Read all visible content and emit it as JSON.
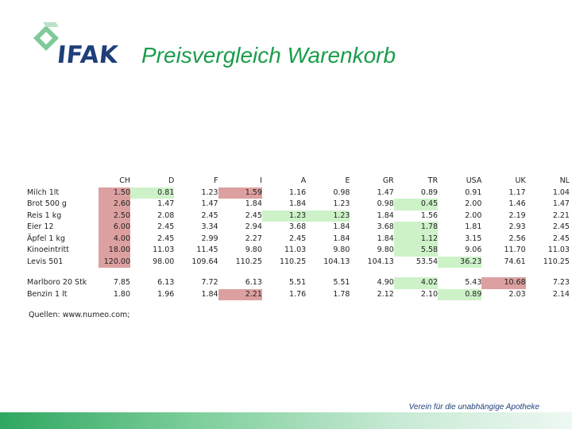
{
  "header": {
    "logo_text": "IFAK",
    "title": "Preisvergleich Warenkorb"
  },
  "colors": {
    "title": "#1a9c4a",
    "logo_navy": "#1f3f7a",
    "highlight_high": "#dda0a0",
    "highlight_low": "#cdf2c8"
  },
  "table": {
    "columns": [
      "CH",
      "D",
      "F",
      "I",
      "A",
      "E",
      "GR",
      "TR",
      "USA",
      "UK",
      "NL"
    ],
    "rows": [
      {
        "label": "Milch 1lt",
        "values": [
          "1.50",
          "0.81",
          "1.23",
          "1.59",
          "1.16",
          "0.98",
          "1.47",
          "0.89",
          "0.91",
          "1.17",
          "1.04"
        ]
      },
      {
        "label": "Brot 500 g",
        "values": [
          "2.60",
          "1.47",
          "1.47",
          "1.84",
          "1.84",
          "1.23",
          "0.98",
          "0.45",
          "2.00",
          "1.46",
          "1.47"
        ]
      },
      {
        "label": "Reis 1 kg",
        "values": [
          "2.50",
          "2.08",
          "2.45",
          "2.45",
          "1.23",
          "1.23",
          "1.84",
          "1.56",
          "2.00",
          "2.19",
          "2.21"
        ]
      },
      {
        "label": "Eier 12",
        "values": [
          "6.00",
          "2.45",
          "3.34",
          "2.94",
          "3.68",
          "1.84",
          "3.68",
          "1.78",
          "1.81",
          "2.93",
          "2.45"
        ]
      },
      {
        "label": "Äpfel 1 kg",
        "values": [
          "4.00",
          "2.45",
          "2.99",
          "2.27",
          "2.45",
          "1.84",
          "1.84",
          "1.12",
          "3.15",
          "2.56",
          "2.45"
        ]
      },
      {
        "label": "Kinoeintritt",
        "values": [
          "18.00",
          "11.03",
          "11.45",
          "9.80",
          "11.03",
          "9.80",
          "9.80",
          "5.58",
          "9.06",
          "11.70",
          "11.03"
        ]
      },
      {
        "label": "Levis 501",
        "values": [
          "120.00",
          "98.00",
          "109.64",
          "110.25",
          "110.25",
          "104.13",
          "104.13",
          "53.54",
          "36.23",
          "74.61",
          "110.25"
        ]
      }
    ],
    "rows2": [
      {
        "label": "Marlboro 20 Stk",
        "values": [
          "7.85",
          "6.13",
          "7.72",
          "6.13",
          "5.51",
          "5.51",
          "4.90",
          "4.02",
          "5.43",
          "10.68",
          "7.23"
        ]
      },
      {
        "label": "Benzin 1 lt",
        "values": [
          "1.80",
          "1.96",
          "1.84",
          "2.21",
          "1.76",
          "1.78",
          "2.12",
          "2.10",
          "0.89",
          "2.03",
          "2.14"
        ]
      }
    ],
    "highlights": {
      "high": [
        [
          0,
          0
        ],
        [
          0,
          3
        ],
        [
          1,
          0
        ],
        [
          2,
          0
        ],
        [
          3,
          0
        ],
        [
          4,
          0
        ],
        [
          5,
          0
        ],
        [
          6,
          0
        ],
        [
          7,
          9
        ],
        [
          8,
          3
        ]
      ],
      "low": [
        [
          0,
          1
        ],
        [
          1,
          7
        ],
        [
          2,
          4
        ],
        [
          2,
          5
        ],
        [
          3,
          7
        ],
        [
          4,
          7
        ],
        [
          5,
          7
        ],
        [
          6,
          8
        ],
        [
          7,
          7
        ],
        [
          8,
          8
        ]
      ]
    }
  },
  "source": "Quellen: www.numeo.com;",
  "footer": {
    "slogan": "Verein für die unabhängige Apotheke"
  }
}
